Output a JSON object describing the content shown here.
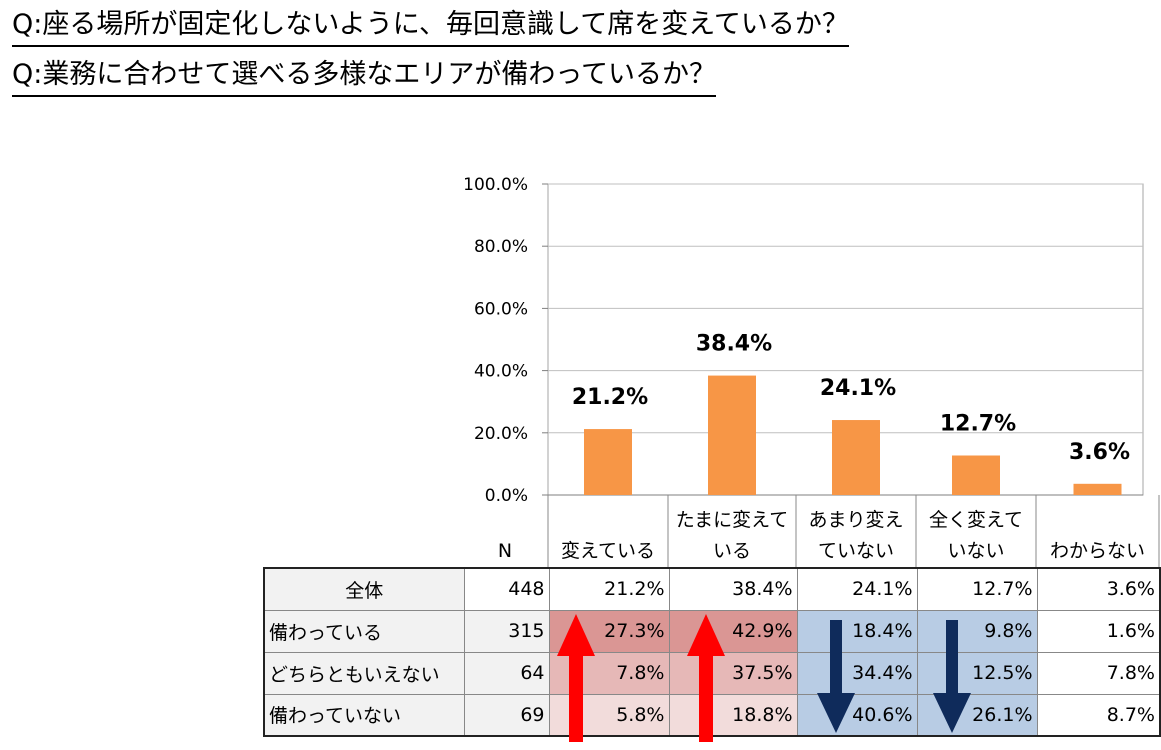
{
  "questions": {
    "q1": "Q:座る場所が固定化しないように、毎回意識して席を変えているか？",
    "q2": "Q:業務に合わせて選べる多様なエリアが備わっているか？"
  },
  "chart_data": {
    "type": "bar",
    "categories": [
      [
        "変えている"
      ],
      [
        "たまに変えて",
        "いる"
      ],
      [
        "あまり変え",
        "ていない"
      ],
      [
        "全く変えて",
        "いない"
      ],
      [
        "わからない"
      ]
    ],
    "values": [
      21.2,
      38.4,
      24.1,
      12.7,
      3.6
    ],
    "data_labels": [
      "21.2%",
      "38.4%",
      "24.1%",
      "12.7%",
      "3.6%"
    ],
    "ylim": [
      0,
      100
    ],
    "yticks": [
      0,
      20,
      40,
      60,
      80,
      100
    ],
    "ytick_labels": [
      "0.0%",
      "20.0%",
      "40.0%",
      "60.0%",
      "80.0%",
      "100.0%"
    ],
    "bar_color": "#F79646",
    "grid": true
  },
  "table": {
    "n_header": "N",
    "rows": [
      {
        "label": "全体",
        "n": "448",
        "values": [
          "21.2%",
          "38.4%",
          "24.1%",
          "12.7%",
          "3.6%"
        ]
      },
      {
        "label": "備わっている",
        "n": "315",
        "values": [
          "27.3%",
          "42.9%",
          "18.4%",
          "9.8%",
          "1.6%"
        ]
      },
      {
        "label": "どちらともいえない",
        "n": "64",
        "values": [
          "7.8%",
          "37.5%",
          "34.4%",
          "12.5%",
          "7.8%"
        ]
      },
      {
        "label": "備わっていない",
        "n": "69",
        "values": [
          "5.8%",
          "18.8%",
          "40.6%",
          "26.1%",
          "8.7%"
        ]
      }
    ],
    "highlights": {
      "red_strong": "#DA9694",
      "red_mid": "#E6B8B7",
      "red_light": "#F2DCDB",
      "blue": "#B8CCE4",
      "arrow_up_color": "#FF0000",
      "arrow_down_color": "#0F2B5B"
    }
  }
}
